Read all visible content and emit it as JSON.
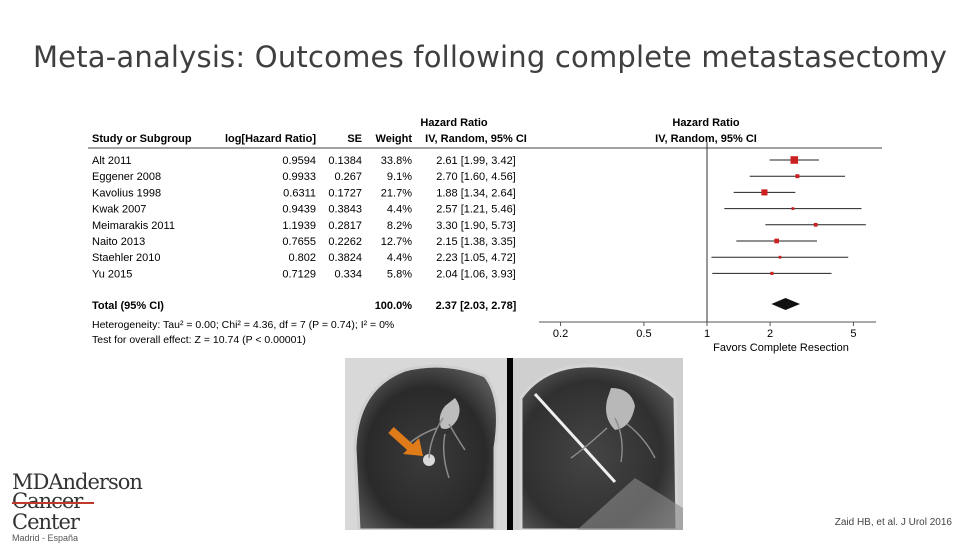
{
  "slide": {
    "title": "Meta-analysis: Outcomes following complete metastasectomy",
    "citation": "Zaid HB, et al. J Urol 2016"
  },
  "logo": {
    "line1": "MDAnderson",
    "line2": "Cancer Center",
    "sub": "Madrid - España"
  },
  "forest": {
    "header_top_left": "Hazard Ratio",
    "header_top_right": "Hazard Ratio",
    "columns": [
      "Study or Subgroup",
      "log[Hazard Ratio]",
      "SE",
      "Weight",
      "IV, Random, 95% CI"
    ],
    "right_subheader": "IV, Random, 95% CI",
    "studies": [
      {
        "name": "Alt 2011",
        "log_hr": "0.9594",
        "se": "0.1384",
        "weight": "33.8%",
        "ci": "2.61 [1.99, 3.42]",
        "hr": 2.61,
        "lo": 1.99,
        "hi": 3.42,
        "w": 33.8
      },
      {
        "name": "Eggener 2008",
        "log_hr": "0.9933",
        "se": "0.267",
        "weight": "9.1%",
        "ci": "2.70 [1.60, 4.56]",
        "hr": 2.7,
        "lo": 1.6,
        "hi": 4.56,
        "w": 9.1
      },
      {
        "name": "Kavolius 1998",
        "log_hr": "0.6311",
        "se": "0.1727",
        "weight": "21.7%",
        "ci": "1.88 [1.34, 2.64]",
        "hr": 1.88,
        "lo": 1.34,
        "hi": 2.64,
        "w": 21.7
      },
      {
        "name": "Kwak 2007",
        "log_hr": "0.9439",
        "se": "0.3843",
        "weight": "4.4%",
        "ci": "2.57 [1.21, 5.46]",
        "hr": 2.57,
        "lo": 1.21,
        "hi": 5.46,
        "w": 4.4
      },
      {
        "name": "Meimarakis 2011",
        "log_hr": "1.1939",
        "se": "0.2817",
        "weight": "8.2%",
        "ci": "3.30 [1.90, 5.73]",
        "hr": 3.3,
        "lo": 1.9,
        "hi": 5.73,
        "w": 8.2
      },
      {
        "name": "Naito 2013",
        "log_hr": "0.7655",
        "se": "0.2262",
        "weight": "12.7%",
        "ci": "2.15 [1.38, 3.35]",
        "hr": 2.15,
        "lo": 1.38,
        "hi": 3.35,
        "w": 12.7
      },
      {
        "name": "Staehler 2010",
        "log_hr": "0.802",
        "se": "0.3824",
        "weight": "4.4%",
        "ci": "2.23 [1.05, 4.72]",
        "hr": 2.23,
        "lo": 1.05,
        "hi": 4.72,
        "w": 4.4
      },
      {
        "name": "Yu 2015",
        "log_hr": "0.7129",
        "se": "0.334",
        "weight": "5.8%",
        "ci": "2.04 [1.06, 3.93]",
        "hr": 2.04,
        "lo": 1.06,
        "hi": 3.93,
        "w": 5.8
      }
    ],
    "total": {
      "label": "Total (95% CI)",
      "weight": "100.0%",
      "ci": "2.37 [2.03, 2.78]",
      "hr": 2.37,
      "lo": 2.03,
      "hi": 2.78
    },
    "heterogeneity": "Heterogeneity: Tau² = 0.00; Chi² = 4.36, df = 7 (P = 0.74); I² = 0%",
    "overall_effect": "Test for overall effect: Z = 10.74 (P < 0.00001)",
    "axis_ticks": [
      {
        "label": "0.2",
        "value": 0.2
      },
      {
        "label": "0.5",
        "value": 0.5
      },
      {
        "label": "1",
        "value": 1
      },
      {
        "label": "2",
        "value": 2
      },
      {
        "label": "5",
        "value": 5
      }
    ],
    "axis_label": "Favors Complete Resection",
    "marker_color": "#cc1f1f"
  }
}
